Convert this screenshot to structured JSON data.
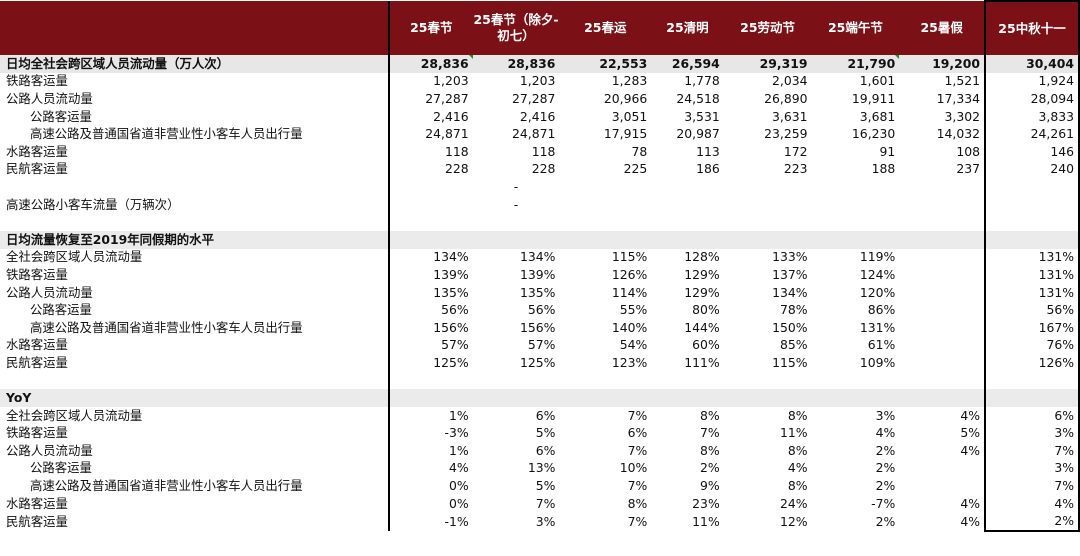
{
  "header": [
    "25春节",
    "25春节（除夕-初七）",
    "25春运",
    "25清明",
    "25劳动节",
    "25端午节",
    "25暑假",
    "25中秋十一"
  ],
  "sections": [
    {
      "title": "日均全社会跨区域人员流动量（万人次）",
      "title_values": [
        "28,836",
        "28,836",
        "22,553",
        "26,594",
        "29,319",
        "21,790",
        "19,200",
        "30,404"
      ],
      "rows": [
        {
          "label": "铁路客运量",
          "indent": false,
          "values": [
            "1,203",
            "1,203",
            "1,283",
            "1,778",
            "2,034",
            "1,601",
            "1,521",
            "1,924"
          ]
        },
        {
          "label": "公路人员流动量",
          "indent": false,
          "values": [
            "27,287",
            "27,287",
            "20,966",
            "24,518",
            "26,890",
            "19,911",
            "17,334",
            "28,094"
          ]
        },
        {
          "label": "公路客运量",
          "indent": true,
          "values": [
            "2,416",
            "2,416",
            "3,051",
            "3,531",
            "3,631",
            "3,681",
            "3,302",
            "3,833"
          ]
        },
        {
          "label": "高速公路及普通国省道非营业性小客车人员出行量",
          "indent": true,
          "values": [
            "24,871",
            "24,871",
            "17,915",
            "20,987",
            "23,259",
            "16,230",
            "14,032",
            "24,261"
          ]
        },
        {
          "label": "水路客运量",
          "indent": false,
          "values": [
            "118",
            "118",
            "78",
            "113",
            "172",
            "91",
            "108",
            "146"
          ]
        },
        {
          "label": "民航客运量",
          "indent": false,
          "values": [
            "228",
            "228",
            "225",
            "186",
            "223",
            "188",
            "237",
            "240"
          ]
        },
        {
          "label": "",
          "indent": false,
          "values": [
            "",
            "-",
            "",
            "",
            "",
            "",
            "",
            ""
          ]
        },
        {
          "label": "高速公路小客车流量（万辆次）",
          "indent": false,
          "values": [
            "",
            "-",
            "",
            "",
            "",
            "",
            "",
            ""
          ]
        }
      ]
    },
    {
      "title": "日均流量恢复至2019年同假期的水平",
      "title_values": [
        "",
        "",
        "",
        "",
        "",
        "",
        "",
        ""
      ],
      "rows": [
        {
          "label": "全社会跨区域人员流动量",
          "indent": false,
          "values": [
            "134%",
            "134%",
            "115%",
            "128%",
            "133%",
            "119%",
            "",
            "131%"
          ]
        },
        {
          "label": "铁路客运量",
          "indent": false,
          "values": [
            "139%",
            "139%",
            "126%",
            "129%",
            "137%",
            "124%",
            "",
            "131%"
          ]
        },
        {
          "label": "公路人员流动量",
          "indent": false,
          "values": [
            "135%",
            "135%",
            "114%",
            "129%",
            "134%",
            "120%",
            "",
            "131%"
          ]
        },
        {
          "label": "公路客运量",
          "indent": true,
          "values": [
            "56%",
            "56%",
            "55%",
            "80%",
            "78%",
            "86%",
            "",
            "56%"
          ]
        },
        {
          "label": "高速公路及普通国省道非营业性小客车人员出行量",
          "indent": true,
          "values": [
            "156%",
            "156%",
            "140%",
            "144%",
            "150%",
            "131%",
            "",
            "167%"
          ]
        },
        {
          "label": "水路客运量",
          "indent": false,
          "values": [
            "57%",
            "57%",
            "54%",
            "60%",
            "85%",
            "61%",
            "",
            "76%"
          ]
        },
        {
          "label": "民航客运量",
          "indent": false,
          "values": [
            "125%",
            "125%",
            "123%",
            "111%",
            "115%",
            "109%",
            "",
            "126%"
          ]
        }
      ]
    },
    {
      "title": "YoY",
      "title_values": [
        "",
        "",
        "",
        "",
        "",
        "",
        "",
        ""
      ],
      "rows": [
        {
          "label": "全社会跨区域人员流动量",
          "indent": false,
          "values": [
            "1%",
            "6%",
            "7%",
            "8%",
            "8%",
            "3%",
            "4%",
            "6%"
          ]
        },
        {
          "label": "铁路客运量",
          "indent": false,
          "values": [
            "-3%",
            "5%",
            "6%",
            "7%",
            "11%",
            "4%",
            "5%",
            "3%"
          ]
        },
        {
          "label": "公路人员流动量",
          "indent": false,
          "values": [
            "1%",
            "6%",
            "7%",
            "8%",
            "8%",
            "2%",
            "4%",
            "7%"
          ]
        },
        {
          "label": "公路客运量",
          "indent": true,
          "values": [
            "4%",
            "13%",
            "10%",
            "2%",
            "4%",
            "2%",
            "",
            "3%"
          ]
        },
        {
          "label": "高速公路及普通国省道非营业性小客车人员出行量",
          "indent": true,
          "values": [
            "0%",
            "5%",
            "7%",
            "9%",
            "8%",
            "2%",
            "",
            "7%"
          ]
        },
        {
          "label": "水路客运量",
          "indent": false,
          "values": [
            "0%",
            "7%",
            "8%",
            "23%",
            "24%",
            "-7%",
            "4%",
            "4%"
          ]
        },
        {
          "label": "民航客运量",
          "indent": false,
          "values": [
            "-1%",
            "3%",
            "7%",
            "11%",
            "12%",
            "2%",
            "4%",
            "2%"
          ]
        }
      ]
    }
  ],
  "flagged_cells": [
    [
      0,
      0
    ],
    [
      0,
      5
    ]
  ],
  "colors": {
    "header_bg": "#7b1116",
    "header_text": "#ffffff",
    "section_bg": "#ebebeb",
    "flag": "#2a8a2a"
  }
}
